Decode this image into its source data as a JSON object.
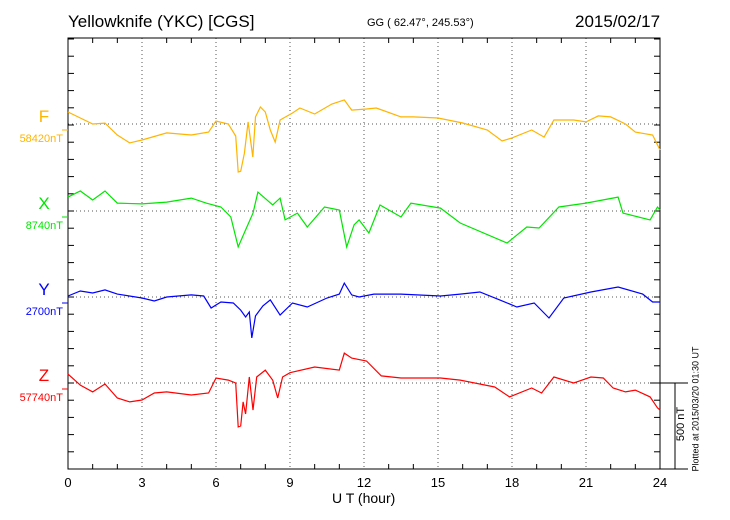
{
  "header": {
    "station": "Yellowknife (YKC)  [CGS]",
    "coords": "GG ( 62.47°, 245.53°)",
    "date": "2015/02/17"
  },
  "footer": {
    "plotted": "Plotted at 2015/03/20 01:30 UT"
  },
  "chart_data": {
    "type": "line",
    "title": "Yellowknife (YKC)  [CGS]",
    "xlabel": "U T (hour)",
    "xlim": [
      0,
      24
    ],
    "xticks": [
      "0",
      "3",
      "6",
      "9",
      "12",
      "15",
      "18",
      "21",
      "24"
    ],
    "grid": "dotted vertical every 3 h, dotted horizontal at each series baseline",
    "scale_bar": {
      "label": "500 nT",
      "value_nT": 500
    },
    "y_minor_tick_nT": 100,
    "series": [
      {
        "name": "F",
        "baseline_label": "58420nT",
        "baseline_nT": 58420,
        "color": "#ffb400",
        "points": [
          [
            0,
            70
          ],
          [
            0.5,
            35
          ],
          [
            1,
            0
          ],
          [
            1.5,
            5
          ],
          [
            2,
            -64
          ],
          [
            2.5,
            -110
          ],
          [
            3,
            -93
          ],
          [
            4,
            -52
          ],
          [
            5,
            -64
          ],
          [
            5.7,
            -47
          ],
          [
            6,
            17
          ],
          [
            6.5,
            0
          ],
          [
            6.8,
            -70
          ],
          [
            6.9,
            -279
          ],
          [
            7.0,
            -275
          ],
          [
            7.15,
            -170
          ],
          [
            7.3,
            12
          ],
          [
            7.49,
            -192
          ],
          [
            7.6,
            41
          ],
          [
            7.8,
            99
          ],
          [
            8.0,
            70
          ],
          [
            8.2,
            -35
          ],
          [
            8.4,
            -105
          ],
          [
            8.6,
            23
          ],
          [
            9.1,
            64
          ],
          [
            9.4,
            93
          ],
          [
            10,
            58
          ],
          [
            10.7,
            116
          ],
          [
            11.2,
            140
          ],
          [
            11.5,
            81
          ],
          [
            12.1,
            87
          ],
          [
            12.5,
            93
          ],
          [
            13.5,
            41
          ],
          [
            14,
            41
          ],
          [
            15,
            35
          ],
          [
            16,
            6
          ],
          [
            17,
            -35
          ],
          [
            17.6,
            -99
          ],
          [
            18,
            -81
          ],
          [
            18.8,
            -35
          ],
          [
            19.3,
            -76
          ],
          [
            19.7,
            23
          ],
          [
            20.5,
            23
          ],
          [
            21,
            12
          ],
          [
            21.5,
            47
          ],
          [
            22,
            41
          ],
          [
            22.6,
            0
          ],
          [
            23,
            -47
          ],
          [
            23.7,
            -64
          ],
          [
            24,
            -151
          ]
        ]
      },
      {
        "name": "X",
        "baseline_label": "8740nT",
        "baseline_nT": 8740,
        "color": "#00e600",
        "points": [
          [
            0,
            81
          ],
          [
            0.5,
            116
          ],
          [
            1,
            64
          ],
          [
            1.5,
            116
          ],
          [
            2,
            46
          ],
          [
            3,
            41
          ],
          [
            4,
            52
          ],
          [
            5,
            75
          ],
          [
            5.6,
            46
          ],
          [
            6.2,
            23
          ],
          [
            6.6,
            -35
          ],
          [
            6.9,
            -209
          ],
          [
            7.2,
            -110
          ],
          [
            7.5,
            -12
          ],
          [
            7.7,
            110
          ],
          [
            8.3,
            35
          ],
          [
            8.6,
            75
          ],
          [
            8.8,
            -52
          ],
          [
            9.3,
            -12
          ],
          [
            9.7,
            -93
          ],
          [
            10.4,
            23
          ],
          [
            11.0,
            6
          ],
          [
            11.3,
            -209
          ],
          [
            11.6,
            -80
          ],
          [
            11.8,
            -52
          ],
          [
            12.2,
            -128
          ],
          [
            12.65,
            35
          ],
          [
            13.5,
            -35
          ],
          [
            13.9,
            46
          ],
          [
            15.1,
            17
          ],
          [
            15.9,
            -70
          ],
          [
            17.8,
            -186
          ],
          [
            18.6,
            -93
          ],
          [
            19.1,
            -99
          ],
          [
            19.9,
            23
          ],
          [
            21,
            46
          ],
          [
            22.3,
            81
          ],
          [
            22.5,
            -12
          ],
          [
            23.6,
            -52
          ],
          [
            23.9,
            23
          ],
          [
            24,
            6
          ]
        ]
      },
      {
        "name": "Y",
        "baseline_label": "2700nT",
        "baseline_nT": 2700,
        "color": "#0000ff",
        "points": [
          [
            0,
            6
          ],
          [
            0.5,
            35
          ],
          [
            1,
            23
          ],
          [
            1.5,
            41
          ],
          [
            2,
            17
          ],
          [
            3,
            -6
          ],
          [
            3.5,
            -23
          ],
          [
            4,
            0
          ],
          [
            5,
            12
          ],
          [
            5.5,
            6
          ],
          [
            5.8,
            -64
          ],
          [
            6.2,
            -29
          ],
          [
            6.7,
            -35
          ],
          [
            7.0,
            -76
          ],
          [
            7.2,
            -116
          ],
          [
            7.35,
            -87
          ],
          [
            7.45,
            -238
          ],
          [
            7.6,
            -110
          ],
          [
            7.9,
            -52
          ],
          [
            8.2,
            -17
          ],
          [
            8.6,
            -105
          ],
          [
            9.1,
            -35
          ],
          [
            9.7,
            -58
          ],
          [
            10.5,
            -6
          ],
          [
            11.0,
            17
          ],
          [
            11.2,
            81
          ],
          [
            11.5,
            12
          ],
          [
            11.8,
            0
          ],
          [
            12.4,
            17
          ],
          [
            13.5,
            17
          ],
          [
            15.1,
            6
          ],
          [
            15.9,
            17
          ],
          [
            16.7,
            29
          ],
          [
            17.5,
            -17
          ],
          [
            18.2,
            -58
          ],
          [
            18.9,
            -35
          ],
          [
            19.5,
            -122
          ],
          [
            20.1,
            -6
          ],
          [
            21.2,
            29
          ],
          [
            22.3,
            58
          ],
          [
            23.3,
            17
          ],
          [
            23.7,
            -29
          ],
          [
            24,
            -29
          ]
        ]
      },
      {
        "name": "Z",
        "baseline_label": "57740nT",
        "baseline_nT": 57740,
        "color": "#ff0000",
        "points": [
          [
            0,
            52
          ],
          [
            0.5,
            -12
          ],
          [
            1,
            -52
          ],
          [
            1.5,
            -6
          ],
          [
            2,
            -87
          ],
          [
            2.5,
            -110
          ],
          [
            3,
            -99
          ],
          [
            3.5,
            -58
          ],
          [
            4,
            -52
          ],
          [
            5,
            -70
          ],
          [
            5.7,
            -58
          ],
          [
            6.0,
            29
          ],
          [
            6.5,
            17
          ],
          [
            6.8,
            0
          ],
          [
            6.9,
            -255
          ],
          [
            7.0,
            -250
          ],
          [
            7.1,
            -110
          ],
          [
            7.2,
            -180
          ],
          [
            7.35,
            35
          ],
          [
            7.5,
            -157
          ],
          [
            7.65,
            35
          ],
          [
            8.0,
            75
          ],
          [
            8.3,
            17
          ],
          [
            8.5,
            -87
          ],
          [
            8.7,
            35
          ],
          [
            9.0,
            60
          ],
          [
            10,
            93
          ],
          [
            11,
            75
          ],
          [
            11.2,
            174
          ],
          [
            11.5,
            145
          ],
          [
            12.1,
            128
          ],
          [
            12.7,
            41
          ],
          [
            13.5,
            29
          ],
          [
            15.1,
            29
          ],
          [
            15.9,
            17
          ],
          [
            17.3,
            -23
          ],
          [
            17.9,
            -81
          ],
          [
            18.8,
            -29
          ],
          [
            19.2,
            -58
          ],
          [
            19.7,
            35
          ],
          [
            20.5,
            0
          ],
          [
            21.2,
            35
          ],
          [
            21.7,
            29
          ],
          [
            22.1,
            -29
          ],
          [
            22.6,
            -52
          ],
          [
            23.0,
            -41
          ],
          [
            23.6,
            -81
          ],
          [
            23.9,
            -145
          ],
          [
            24,
            -157
          ]
        ]
      }
    ]
  }
}
